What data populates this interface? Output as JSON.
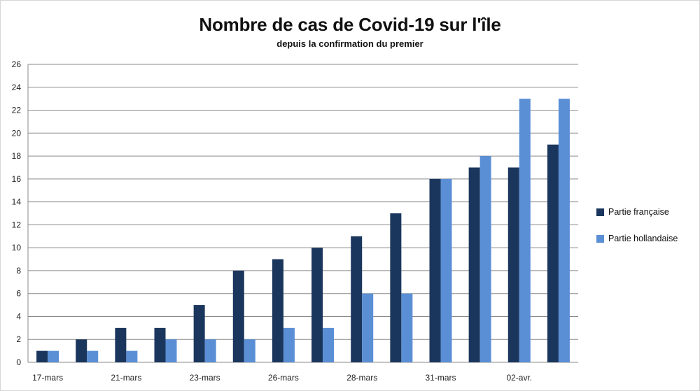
{
  "chart_data": {
    "type": "bar",
    "title": "Nombre de cas de Covid-19 sur l'île",
    "subtitle": "depuis la confirmation du premier",
    "xlabel": "",
    "ylabel": "",
    "ylim": [
      0,
      26
    ],
    "yticks": [
      0,
      2,
      4,
      6,
      8,
      10,
      12,
      14,
      16,
      18,
      20,
      22,
      24,
      26
    ],
    "categories": [
      "17-mars",
      "",
      "21-mars",
      "",
      "23-mars",
      "",
      "26-mars",
      "",
      "28-mars",
      "",
      "31-mars",
      "",
      "02-avr.",
      ""
    ],
    "series": [
      {
        "name": "Partie française",
        "color": "#1b365d",
        "values": [
          1,
          2,
          3,
          3,
          5,
          8,
          9,
          10,
          11,
          13,
          16,
          17,
          17,
          19
        ]
      },
      {
        "name": "Partie hollandaise",
        "color": "#5a8fd6",
        "values": [
          1,
          1,
          1,
          2,
          2,
          2,
          3,
          3,
          6,
          6,
          16,
          18,
          23,
          23
        ]
      }
    ],
    "grid": true,
    "legend_position": "right"
  }
}
